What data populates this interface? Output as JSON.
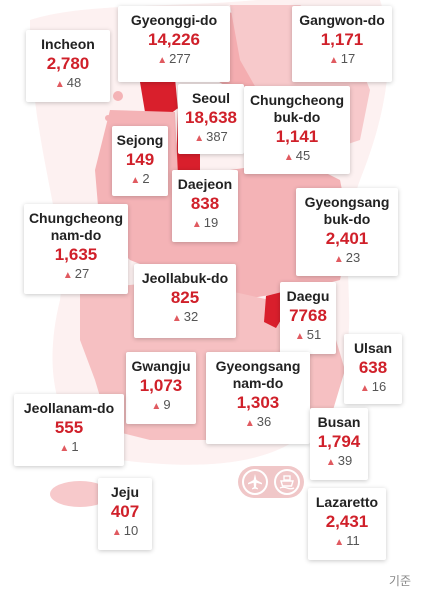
{
  "colors": {
    "accent": "#d0202a",
    "land_light": "#f6c2c4",
    "land_mid": "#ee9a9e",
    "land_dark": "#d91f2c"
  },
  "regions": {
    "gyeonggi": {
      "name": "Gyeonggi-do",
      "count": "14,226",
      "delta": "277"
    },
    "gangwon": {
      "name": "Gangwon-do",
      "count": "1,171",
      "delta": "17"
    },
    "incheon": {
      "name": "Incheon",
      "count": "2,780",
      "delta": "48"
    },
    "seoul": {
      "name": "Seoul",
      "count": "18,638",
      "delta": "387"
    },
    "chungbuk": {
      "name": "Chungcheong\nbuk-do",
      "count": "1,141",
      "delta": "45"
    },
    "sejong": {
      "name": "Sejong",
      "count": "149",
      "delta": "2"
    },
    "daejeon": {
      "name": "Daejeon",
      "count": "838",
      "delta": "19"
    },
    "gyeongbuk": {
      "name": "Gyeongsang\nbuk-do",
      "count": "2,401",
      "delta": "23"
    },
    "chungnam": {
      "name": "Chungcheong\nnam-do",
      "count": "1,635",
      "delta": "27"
    },
    "jeonbuk": {
      "name": "Jeollabuk-do",
      "count": "825",
      "delta": "32"
    },
    "daegu": {
      "name": "Daegu",
      "count": "7768",
      "delta": "51"
    },
    "ulsan": {
      "name": "Ulsan",
      "count": "638",
      "delta": "16"
    },
    "gwangju": {
      "name": "Gwangju",
      "count": "1,073",
      "delta": "9"
    },
    "gyeongnam": {
      "name": "Gyeongsang\nnam-do",
      "count": "1,303",
      "delta": "36"
    },
    "jeonnam": {
      "name": "Jeollanam-do",
      "count": "555",
      "delta": "1"
    },
    "busan": {
      "name": "Busan",
      "count": "1,794",
      "delta": "39"
    },
    "jeju": {
      "name": "Jeju",
      "count": "407",
      "delta": "10"
    },
    "lazaretto": {
      "name": "Lazaretto",
      "count": "2,431",
      "delta": "11"
    }
  },
  "icons": {
    "airplane": "airplane-icon",
    "ship": "ship-icon",
    "increase": "up-triangle-icon"
  },
  "footnote": "기준"
}
